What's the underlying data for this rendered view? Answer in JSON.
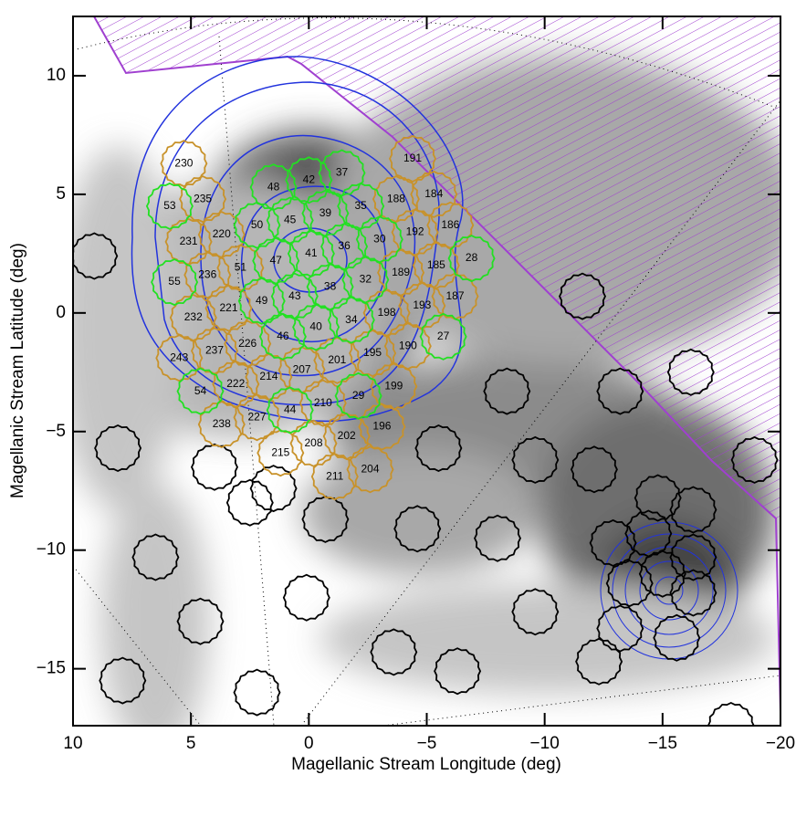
{
  "chart_data": {
    "type": "field-map",
    "x_label": "Magellanic Stream Longitude (deg)",
    "y_label": "Magellanic Stream Latitude (deg)",
    "xlim": [
      10,
      -20
    ],
    "ylim": [
      -17.4,
      12.5
    ],
    "xticks": [
      10,
      5,
      0,
      {
        "value": -5,
        "label": "−5"
      },
      {
        "value": -10,
        "label": "−10"
      },
      {
        "value": -15,
        "label": "−15"
      },
      {
        "value": -20,
        "label": "−20"
      }
    ],
    "yticks": [
      {
        "value": -15,
        "label": "−15"
      },
      {
        "value": -10,
        "label": "−10"
      },
      {
        "value": -5,
        "label": "−5"
      },
      0,
      5,
      10
    ],
    "series": [
      {
        "color": "#c8922a",
        "fields": [
          {
            "label": "230",
            "x": 5.3,
            "y": 6.3
          },
          {
            "label": "235",
            "x": 4.5,
            "y": 4.8
          },
          {
            "label": "191",
            "x": -4.4,
            "y": 6.5
          },
          {
            "label": "188",
            "x": -3.7,
            "y": 4.8
          },
          {
            "label": "184",
            "x": -5.3,
            "y": 5.0
          },
          {
            "label": "220",
            "x": 3.7,
            "y": 3.3
          },
          {
            "label": "231",
            "x": 5.1,
            "y": 3.0
          },
          {
            "label": "186",
            "x": -6.0,
            "y": 3.7
          },
          {
            "label": "192",
            "x": -4.5,
            "y": 3.4
          },
          {
            "label": "51",
            "x": 2.9,
            "y": 1.9
          },
          {
            "label": "236",
            "x": 4.3,
            "y": 1.6
          },
          {
            "label": "185",
            "x": -5.4,
            "y": 2.0
          },
          {
            "label": "189",
            "x": -3.9,
            "y": 1.7
          },
          {
            "label": "221",
            "x": 3.4,
            "y": 0.2
          },
          {
            "label": "232",
            "x": 4.9,
            "y": -0.2
          },
          {
            "label": "187",
            "x": -6.2,
            "y": 0.7
          },
          {
            "label": "193",
            "x": -4.8,
            "y": 0.3
          },
          {
            "label": "198",
            "x": -3.3,
            "y": 0.0
          },
          {
            "label": "226",
            "x": 2.6,
            "y": -1.3
          },
          {
            "label": "237",
            "x": 4.0,
            "y": -1.6
          },
          {
            "label": "243",
            "x": 5.5,
            "y": -1.9
          },
          {
            "label": "190",
            "x": -4.2,
            "y": -1.4
          },
          {
            "label": "195",
            "x": -2.7,
            "y": -1.7
          },
          {
            "label": "201",
            "x": -1.2,
            "y": -2.0
          },
          {
            "label": "207",
            "x": 0.3,
            "y": -2.4
          },
          {
            "label": "214",
            "x": 1.7,
            "y": -2.7
          },
          {
            "label": "222",
            "x": 3.1,
            "y": -3.0
          },
          {
            "label": "199",
            "x": -3.6,
            "y": -3.1
          },
          {
            "label": "210",
            "x": -0.6,
            "y": -3.8
          },
          {
            "label": "227",
            "x": 2.2,
            "y": -4.4
          },
          {
            "label": "238",
            "x": 3.7,
            "y": -4.7
          },
          {
            "label": "196",
            "x": -3.1,
            "y": -4.8
          },
          {
            "label": "202",
            "x": -1.6,
            "y": -5.2
          },
          {
            "label": "208",
            "x": -0.2,
            "y": -5.5
          },
          {
            "label": "215",
            "x": 1.2,
            "y": -5.9
          },
          {
            "label": "204",
            "x": -2.6,
            "y": -6.6
          },
          {
            "label": "211",
            "x": -1.1,
            "y": -6.9
          }
        ]
      },
      {
        "color": "#22e022",
        "fields": [
          {
            "label": "53",
            "x": 5.9,
            "y": 4.5
          },
          {
            "label": "48",
            "x": 1.5,
            "y": 5.3
          },
          {
            "label": "42",
            "x": 0.0,
            "y": 5.6
          },
          {
            "label": "37",
            "x": -1.4,
            "y": 5.9
          },
          {
            "label": "35",
            "x": -2.2,
            "y": 4.5
          },
          {
            "label": "39",
            "x": -0.7,
            "y": 4.2
          },
          {
            "label": "45",
            "x": 0.8,
            "y": 3.9
          },
          {
            "label": "50",
            "x": 2.2,
            "y": 3.7
          },
          {
            "label": "30",
            "x": -3.0,
            "y": 3.1
          },
          {
            "label": "36",
            "x": -1.5,
            "y": 2.8
          },
          {
            "label": "41",
            "x": -0.1,
            "y": 2.5
          },
          {
            "label": "47",
            "x": 1.4,
            "y": 2.2
          },
          {
            "label": "55",
            "x": 5.7,
            "y": 1.3
          },
          {
            "label": "28",
            "x": -6.9,
            "y": 2.3
          },
          {
            "label": "32",
            "x": -2.4,
            "y": 1.4
          },
          {
            "label": "38",
            "x": -0.9,
            "y": 1.1
          },
          {
            "label": "43",
            "x": 0.6,
            "y": 0.7
          },
          {
            "label": "49",
            "x": 2.0,
            "y": 0.5
          },
          {
            "label": "34",
            "x": -1.8,
            "y": -0.3
          },
          {
            "label": "40",
            "x": -0.3,
            "y": -0.6
          },
          {
            "label": "46",
            "x": 1.1,
            "y": -1.0
          },
          {
            "label": "27",
            "x": -5.7,
            "y": -1.0
          },
          {
            "label": "54",
            "x": 4.6,
            "y": -3.3
          },
          {
            "label": "29",
            "x": -2.1,
            "y": -3.5
          },
          {
            "label": "44",
            "x": 0.8,
            "y": -4.1
          }
        ]
      },
      {
        "color": "#000000",
        "fields": [
          {
            "x": 9.1,
            "y": 2.4
          },
          {
            "x": 8.1,
            "y": -5.7
          },
          {
            "x": 6.5,
            "y": -10.3
          },
          {
            "x": 4.6,
            "y": -13.0
          },
          {
            "x": 7.9,
            "y": -15.5
          },
          {
            "x": 2.2,
            "y": -16.0
          },
          {
            "x": 0.1,
            "y": -12.0
          },
          {
            "x": -0.7,
            "y": -8.7
          },
          {
            "x": 2.5,
            "y": -8.0
          },
          {
            "x": 4.0,
            "y": -6.5
          },
          {
            "x": 1.5,
            "y": -7.4
          },
          {
            "x": -4.6,
            "y": -9.1
          },
          {
            "x": -5.5,
            "y": -5.7
          },
          {
            "x": -9.6,
            "y": -6.2
          },
          {
            "x": -8.0,
            "y": -9.5
          },
          {
            "x": -3.6,
            "y": -14.3
          },
          {
            "x": -6.3,
            "y": -15.1
          },
          {
            "x": -9.6,
            "y": -12.6
          },
          {
            "x": -12.3,
            "y": -14.7
          },
          {
            "x": -12.1,
            "y": -6.6
          },
          {
            "x": -13.2,
            "y": -3.3
          },
          {
            "x": -11.6,
            "y": 0.7
          },
          {
            "x": -16.2,
            "y": -2.5
          },
          {
            "x": -8.4,
            "y": -3.3
          },
          {
            "x": -18.9,
            "y": -6.2
          },
          {
            "x": -17.9,
            "y": -17.4
          },
          {
            "x": -14.8,
            "y": -7.8
          },
          {
            "x": -16.3,
            "y": -8.3
          },
          {
            "x": -12.9,
            "y": -9.7
          },
          {
            "x": -16.3,
            "y": -10.3
          },
          {
            "x": -13.6,
            "y": -11.4
          },
          {
            "x": -16.3,
            "y": -11.8
          },
          {
            "x": -13.2,
            "y": -13.3
          },
          {
            "x": -15.6,
            "y": -13.7
          },
          {
            "x": -15.0,
            "y": -11.0
          },
          {
            "x": -14.4,
            "y": -9.3
          }
        ]
      }
    ]
  }
}
